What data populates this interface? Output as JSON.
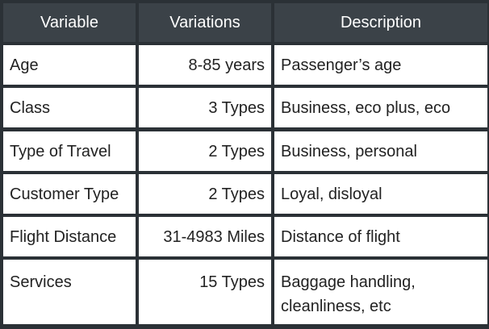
{
  "table": {
    "headers": [
      "Variable",
      "Variations",
      "Description"
    ],
    "rows": [
      {
        "variable": "Age",
        "variations": "8-85 years",
        "description": "Passenger’s age"
      },
      {
        "variable": "Class",
        "variations": "3 Types",
        "description": "Business, eco plus, eco"
      },
      {
        "variable": "Type of Travel",
        "variations": "2 Types",
        "description": "Business, personal"
      },
      {
        "variable": "Customer Type",
        "variations": "2 Types",
        "description": "Loyal, disloyal"
      },
      {
        "variable": "Flight Distance",
        "variations": "31-4983 Miles",
        "description": "Distance of flight"
      },
      {
        "variable": "Services",
        "variations": "15 Types",
        "description": "Baggage handling, cleanliness, etc"
      }
    ]
  },
  "colors": {
    "border": "#2b3136",
    "header_bg": "#3b4248",
    "header_text": "#ffffff",
    "cell_bg": "#ffffff",
    "cell_text": "#222222"
  }
}
